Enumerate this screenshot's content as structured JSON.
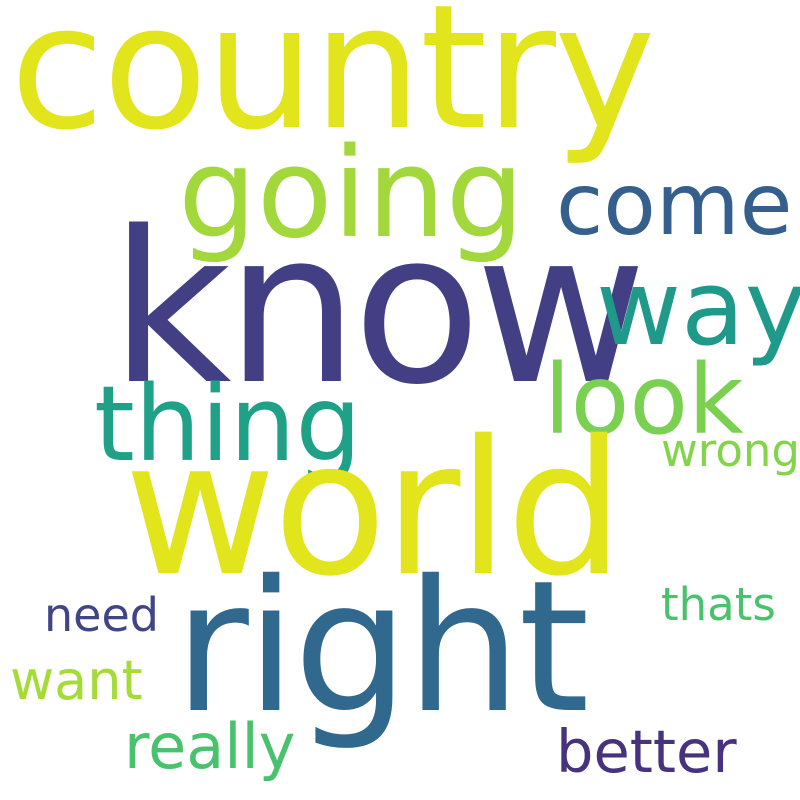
{
  "background": "#ffffff",
  "words": [
    {
      "text": "country",
      "color": "#e2e41c"
    },
    {
      "text": "going",
      "color": "#a2d83b"
    },
    {
      "text": "come",
      "color": "#355f8d"
    },
    {
      "text": "know",
      "color": "#423f85"
    },
    {
      "text": "way",
      "color": "#1f9a8a"
    },
    {
      "text": "look",
      "color": "#7ad151"
    },
    {
      "text": "thing",
      "color": "#1fa187"
    },
    {
      "text": "wrong",
      "color": "#84d44b"
    },
    {
      "text": "world",
      "color": "#e2e41c"
    },
    {
      "text": "need",
      "color": "#414487"
    },
    {
      "text": "thats",
      "color": "#4ac16d"
    },
    {
      "text": "right",
      "color": "#31688e"
    },
    {
      "text": "want",
      "color": "#a5db36"
    },
    {
      "text": "really",
      "color": "#4ac16d"
    },
    {
      "text": "better",
      "color": "#46327e"
    }
  ]
}
